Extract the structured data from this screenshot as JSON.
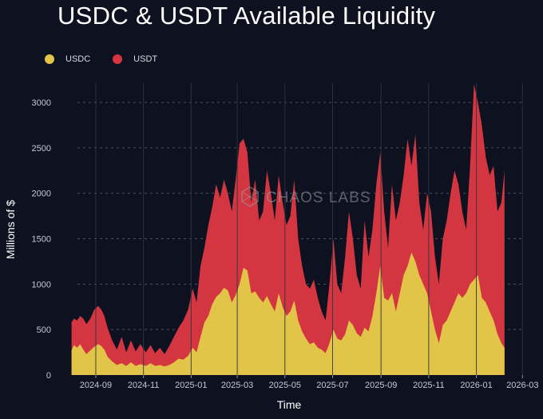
{
  "title": "USDC & USDT Available Liquidity",
  "watermark": "CHAOS LABS",
  "colors": {
    "background": "#0e1220",
    "usdc": "#e2c448",
    "usdt": "#d33640",
    "grid": "#4a4f5c"
  },
  "chart_data": {
    "type": "area",
    "stacked": true,
    "title": "USDC & USDT Available Liquidity",
    "xlabel": "Time",
    "ylabel": "Millions of $",
    "ylim": [
      0,
      3300
    ],
    "yticks": [
      0,
      500,
      1000,
      1500,
      2000,
      2500,
      3000
    ],
    "xlim": [
      "2024-07-15",
      "2026-03-15"
    ],
    "xticks": [
      "2024-09",
      "2024-11",
      "2025-01",
      "2025-03",
      "2025-05",
      "2025-07",
      "2025-09",
      "2025-11",
      "2026-01",
      "2026-03"
    ],
    "legend": {
      "position": "top-left",
      "entries": [
        "USDC",
        "USDT"
      ]
    },
    "series": [
      {
        "name": "USDC",
        "color": "#e2c448",
        "points": [
          [
            "2024-08-01",
            270
          ],
          [
            "2024-08-04",
            330
          ],
          [
            "2024-08-08",
            300
          ],
          [
            "2024-08-12",
            340
          ],
          [
            "2024-08-16",
            280
          ],
          [
            "2024-08-20",
            230
          ],
          [
            "2024-08-25",
            270
          ],
          [
            "2024-08-30",
            310
          ],
          [
            "2024-09-04",
            340
          ],
          [
            "2024-09-08",
            320
          ],
          [
            "2024-09-12",
            280
          ],
          [
            "2024-09-16",
            200
          ],
          [
            "2024-09-22",
            150
          ],
          [
            "2024-09-28",
            110
          ],
          [
            "2024-10-04",
            130
          ],
          [
            "2024-10-10",
            100
          ],
          [
            "2024-10-16",
            140
          ],
          [
            "2024-10-22",
            100
          ],
          [
            "2024-10-28",
            120
          ],
          [
            "2024-11-04",
            100
          ],
          [
            "2024-11-10",
            130
          ],
          [
            "2024-11-16",
            100
          ],
          [
            "2024-11-22",
            110
          ],
          [
            "2024-11-28",
            95
          ],
          [
            "2024-12-04",
            110
          ],
          [
            "2024-12-10",
            140
          ],
          [
            "2024-12-16",
            180
          ],
          [
            "2024-12-22",
            170
          ],
          [
            "2024-12-28",
            210
          ],
          [
            "2025-01-03",
            300
          ],
          [
            "2025-01-08",
            250
          ],
          [
            "2025-01-13",
            420
          ],
          [
            "2025-01-18",
            580
          ],
          [
            "2025-01-23",
            650
          ],
          [
            "2025-01-28",
            780
          ],
          [
            "2025-02-02",
            860
          ],
          [
            "2025-02-07",
            900
          ],
          [
            "2025-02-12",
            960
          ],
          [
            "2025-02-17",
            930
          ],
          [
            "2025-02-22",
            800
          ],
          [
            "2025-02-27",
            880
          ],
          [
            "2025-03-04",
            1000
          ],
          [
            "2025-03-09",
            1180
          ],
          [
            "2025-03-14",
            1150
          ],
          [
            "2025-03-19",
            900
          ],
          [
            "2025-03-24",
            920
          ],
          [
            "2025-03-29",
            850
          ],
          [
            "2025-04-03",
            800
          ],
          [
            "2025-04-08",
            870
          ],
          [
            "2025-04-13",
            780
          ],
          [
            "2025-04-18",
            700
          ],
          [
            "2025-04-23",
            900
          ],
          [
            "2025-04-28",
            750
          ],
          [
            "2025-05-03",
            650
          ],
          [
            "2025-05-08",
            700
          ],
          [
            "2025-05-13",
            820
          ],
          [
            "2025-05-18",
            600
          ],
          [
            "2025-05-23",
            480
          ],
          [
            "2025-05-28",
            400
          ],
          [
            "2025-06-02",
            340
          ],
          [
            "2025-06-07",
            360
          ],
          [
            "2025-06-12",
            300
          ],
          [
            "2025-06-17",
            280
          ],
          [
            "2025-06-22",
            240
          ],
          [
            "2025-06-27",
            350
          ],
          [
            "2025-07-02",
            500
          ],
          [
            "2025-07-07",
            400
          ],
          [
            "2025-07-12",
            380
          ],
          [
            "2025-07-17",
            450
          ],
          [
            "2025-07-22",
            600
          ],
          [
            "2025-07-27",
            550
          ],
          [
            "2025-08-01",
            460
          ],
          [
            "2025-08-06",
            420
          ],
          [
            "2025-08-11",
            520
          ],
          [
            "2025-08-16",
            480
          ],
          [
            "2025-08-21",
            650
          ],
          [
            "2025-08-26",
            900
          ],
          [
            "2025-08-31",
            1200
          ],
          [
            "2025-09-05",
            850
          ],
          [
            "2025-09-10",
            820
          ],
          [
            "2025-09-15",
            900
          ],
          [
            "2025-09-20",
            700
          ],
          [
            "2025-09-25",
            900
          ],
          [
            "2025-09-30",
            1100
          ],
          [
            "2025-10-05",
            1200
          ],
          [
            "2025-10-10",
            1350
          ],
          [
            "2025-10-15",
            1250
          ],
          [
            "2025-10-20",
            1100
          ],
          [
            "2025-10-25",
            1000
          ],
          [
            "2025-10-30",
            900
          ],
          [
            "2025-11-04",
            700
          ],
          [
            "2025-11-09",
            500
          ],
          [
            "2025-11-14",
            350
          ],
          [
            "2025-11-19",
            550
          ],
          [
            "2025-11-24",
            600
          ],
          [
            "2025-11-29",
            700
          ],
          [
            "2025-12-04",
            800
          ],
          [
            "2025-12-09",
            900
          ],
          [
            "2025-12-14",
            850
          ],
          [
            "2025-12-19",
            900
          ],
          [
            "2025-12-24",
            1000
          ],
          [
            "2025-12-29",
            1050
          ],
          [
            "2026-01-03",
            1100
          ],
          [
            "2026-01-08",
            850
          ],
          [
            "2026-01-13",
            800
          ],
          [
            "2026-01-18",
            700
          ],
          [
            "2026-01-23",
            600
          ],
          [
            "2026-01-28",
            450
          ],
          [
            "2026-02-02",
            350
          ],
          [
            "2026-02-06",
            300
          ]
        ]
      },
      {
        "name": "USDT",
        "color": "#d33640",
        "points": [
          [
            "2024-08-01",
            580
          ],
          [
            "2024-08-04",
            620
          ],
          [
            "2024-08-08",
            600
          ],
          [
            "2024-08-12",
            650
          ],
          [
            "2024-08-16",
            620
          ],
          [
            "2024-08-20",
            560
          ],
          [
            "2024-08-25",
            620
          ],
          [
            "2024-08-30",
            720
          ],
          [
            "2024-09-04",
            760
          ],
          [
            "2024-09-08",
            720
          ],
          [
            "2024-09-12",
            650
          ],
          [
            "2024-09-16",
            520
          ],
          [
            "2024-09-22",
            380
          ],
          [
            "2024-09-28",
            280
          ],
          [
            "2024-10-04",
            420
          ],
          [
            "2024-10-10",
            250
          ],
          [
            "2024-10-16",
            380
          ],
          [
            "2024-10-22",
            260
          ],
          [
            "2024-10-28",
            340
          ],
          [
            "2024-11-04",
            250
          ],
          [
            "2024-11-10",
            330
          ],
          [
            "2024-11-16",
            240
          ],
          [
            "2024-11-22",
            300
          ],
          [
            "2024-11-28",
            230
          ],
          [
            "2024-12-04",
            320
          ],
          [
            "2024-12-10",
            420
          ],
          [
            "2024-12-16",
            520
          ],
          [
            "2024-12-22",
            600
          ],
          [
            "2024-12-28",
            720
          ],
          [
            "2025-01-03",
            950
          ],
          [
            "2025-01-08",
            800
          ],
          [
            "2025-01-13",
            1200
          ],
          [
            "2025-01-18",
            1400
          ],
          [
            "2025-01-23",
            1650
          ],
          [
            "2025-01-28",
            1850
          ],
          [
            "2025-02-02",
            2100
          ],
          [
            "2025-02-07",
            1950
          ],
          [
            "2025-02-12",
            2150
          ],
          [
            "2025-02-17",
            2000
          ],
          [
            "2025-02-22",
            1800
          ],
          [
            "2025-02-27",
            2150
          ],
          [
            "2025-03-04",
            2550
          ],
          [
            "2025-03-09",
            2600
          ],
          [
            "2025-03-14",
            2450
          ],
          [
            "2025-03-19",
            1900
          ],
          [
            "2025-03-24",
            2150
          ],
          [
            "2025-03-29",
            1700
          ],
          [
            "2025-04-03",
            1800
          ],
          [
            "2025-04-08",
            2250
          ],
          [
            "2025-04-13",
            2000
          ],
          [
            "2025-04-18",
            1700
          ],
          [
            "2025-04-23",
            2200
          ],
          [
            "2025-04-28",
            1900
          ],
          [
            "2025-05-03",
            1650
          ],
          [
            "2025-05-08",
            1750
          ],
          [
            "2025-05-13",
            2150
          ],
          [
            "2025-05-18",
            1500
          ],
          [
            "2025-05-23",
            1200
          ],
          [
            "2025-05-28",
            1000
          ],
          [
            "2025-06-02",
            950
          ],
          [
            "2025-06-07",
            1050
          ],
          [
            "2025-06-12",
            850
          ],
          [
            "2025-06-17",
            700
          ],
          [
            "2025-06-22",
            600
          ],
          [
            "2025-06-27",
            1000
          ],
          [
            "2025-07-02",
            1500
          ],
          [
            "2025-07-07",
            1000
          ],
          [
            "2025-07-12",
            900
          ],
          [
            "2025-07-17",
            1300
          ],
          [
            "2025-07-22",
            1800
          ],
          [
            "2025-07-27",
            1500
          ],
          [
            "2025-08-01",
            1100
          ],
          [
            "2025-08-06",
            950
          ],
          [
            "2025-08-11",
            1700
          ],
          [
            "2025-08-16",
            1300
          ],
          [
            "2025-08-21",
            1600
          ],
          [
            "2025-08-26",
            2100
          ],
          [
            "2025-08-31",
            2450
          ],
          [
            "2025-09-05",
            1800
          ],
          [
            "2025-09-10",
            1400
          ],
          [
            "2025-09-15",
            2100
          ],
          [
            "2025-09-20",
            1700
          ],
          [
            "2025-09-25",
            1900
          ],
          [
            "2025-09-30",
            2200
          ],
          [
            "2025-10-05",
            2600
          ],
          [
            "2025-10-10",
            2300
          ],
          [
            "2025-10-15",
            2650
          ],
          [
            "2025-10-20",
            1900
          ],
          [
            "2025-10-25",
            1600
          ],
          [
            "2025-10-30",
            2000
          ],
          [
            "2025-11-04",
            1800
          ],
          [
            "2025-11-09",
            1300
          ],
          [
            "2025-11-14",
            1000
          ],
          [
            "2025-11-19",
            1500
          ],
          [
            "2025-11-24",
            1700
          ],
          [
            "2025-11-29",
            2000
          ],
          [
            "2025-12-04",
            2250
          ],
          [
            "2025-12-09",
            2100
          ],
          [
            "2025-12-14",
            1800
          ],
          [
            "2025-12-19",
            1600
          ],
          [
            "2025-12-24",
            2300
          ],
          [
            "2025-12-29",
            3200
          ],
          [
            "2026-01-03",
            3000
          ],
          [
            "2026-01-08",
            2750
          ],
          [
            "2026-01-13",
            2400
          ],
          [
            "2026-01-18",
            2200
          ],
          [
            "2026-01-23",
            2300
          ],
          [
            "2026-01-28",
            1800
          ],
          [
            "2026-02-02",
            1900
          ],
          [
            "2026-02-06",
            2250
          ]
        ]
      }
    ]
  }
}
